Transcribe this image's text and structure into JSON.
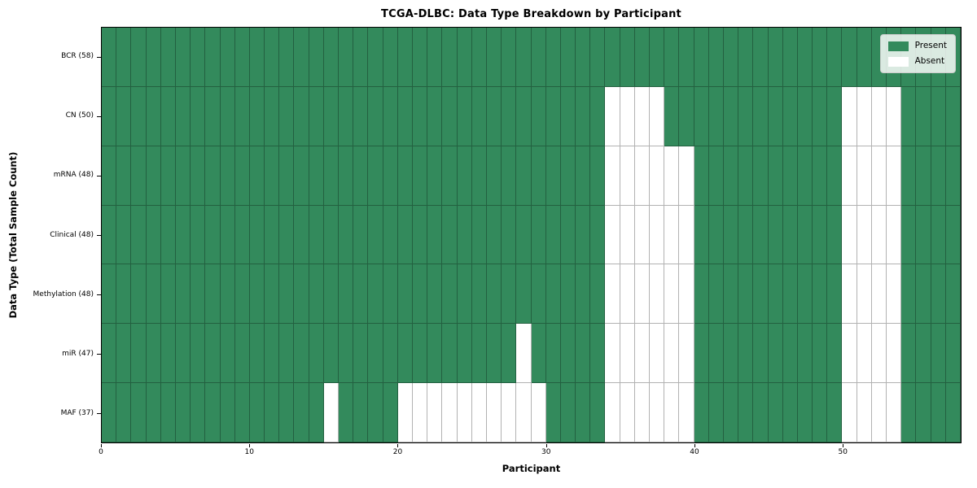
{
  "chart_data": {
    "type": "heatmap",
    "title": "TCGA-DLBC: Data Type Breakdown by Participant",
    "xlabel": "Participant",
    "ylabel": "Data Type (Total Sample Count)",
    "n_participants": 58,
    "x_range": [
      0,
      58
    ],
    "x_ticks": [
      0,
      10,
      20,
      30,
      40,
      50
    ],
    "grid": "cell-edges",
    "colors": {
      "present": "#338a5c",
      "absent": "#ffffff",
      "cell_edge": "rgba(0,0,0,0.30)",
      "spine": "#000000"
    },
    "legend": {
      "position": "upper right",
      "items": [
        {
          "label": "Present",
          "color": "#338a5c"
        },
        {
          "label": "Absent",
          "color": "#ffffff"
        }
      ]
    },
    "rows": [
      {
        "label": "BCR (58)",
        "data_type": "BCR",
        "present_count": 58,
        "absent_participants": []
      },
      {
        "label": "CN (50)",
        "data_type": "CN",
        "present_count": 50,
        "absent_participants": [
          34,
          35,
          36,
          37,
          50,
          51,
          52,
          53
        ]
      },
      {
        "label": "mRNA (48)",
        "data_type": "mRNA",
        "present_count": 48,
        "absent_participants": [
          34,
          35,
          36,
          37,
          38,
          39,
          50,
          51,
          52,
          53
        ]
      },
      {
        "label": "Clinical (48)",
        "data_type": "Clinical",
        "present_count": 48,
        "absent_participants": [
          34,
          35,
          36,
          37,
          38,
          39,
          50,
          51,
          52,
          53
        ]
      },
      {
        "label": "Methylation (48)",
        "data_type": "Methylation",
        "present_count": 48,
        "absent_participants": [
          34,
          35,
          36,
          37,
          38,
          39,
          50,
          51,
          52,
          53
        ]
      },
      {
        "label": "miR (47)",
        "data_type": "miR",
        "present_count": 47,
        "absent_participants": [
          28,
          34,
          35,
          36,
          37,
          38,
          39,
          50,
          51,
          52,
          53
        ]
      },
      {
        "label": "MAF (37)",
        "data_type": "MAF",
        "present_count": 37,
        "absent_participants": [
          15,
          20,
          21,
          22,
          23,
          24,
          25,
          26,
          27,
          28,
          29,
          34,
          35,
          36,
          37,
          38,
          39,
          50,
          51,
          52,
          53
        ]
      }
    ]
  }
}
